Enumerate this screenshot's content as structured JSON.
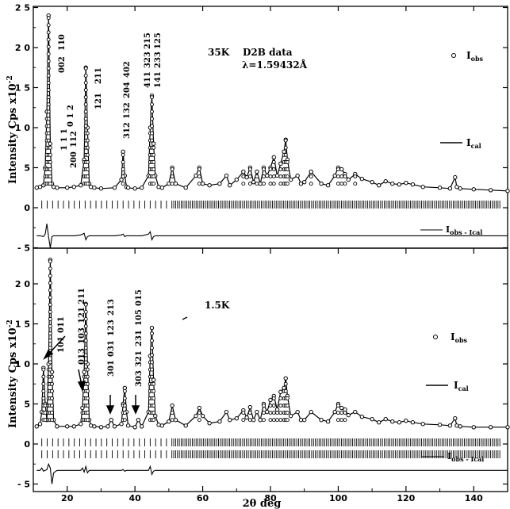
{
  "chart_data": [
    {
      "type": "scatter",
      "panel": "top",
      "annotation_temp": "35K",
      "annotation_source": "D2B data",
      "annotation_lambda": "λ=1.59432Å",
      "ylabel": "Intensity  Cps  x10",
      "ylabel_exp": "-2",
      "xlim": [
        10,
        150
      ],
      "ylim": [
        -5,
        25
      ],
      "yticks": [
        "2 5",
        "2 0",
        "1 5",
        "1 0",
        "5",
        "0",
        "- 5"
      ],
      "legend": {
        "obs": "I",
        "obs_sub": "obs",
        "cal": "I",
        "cal_sub": "cal",
        "diff": "I",
        "diff_sub": "obs - I",
        "diff_sub2": "cal"
      },
      "peak_labels": [
        "1 1 1",
        "200",
        "0 1 2",
        "112",
        "002",
        "110",
        "121",
        "211",
        "312",
        "132",
        "204",
        "402",
        "411",
        "141",
        "323",
        "233",
        "215",
        "125"
      ],
      "x": [
        11,
        12,
        13,
        13.5,
        14,
        14.5,
        15,
        15.5,
        16,
        17,
        20,
        22,
        24,
        25,
        25.5,
        26,
        26.5,
        27,
        28,
        30,
        34,
        36,
        36.5,
        37,
        37.5,
        38,
        40,
        42,
        44,
        44.5,
        45,
        45.5,
        46,
        47,
        48,
        50,
        51,
        52,
        55,
        58,
        59,
        60,
        62,
        65,
        67,
        68,
        70,
        72,
        73,
        74,
        75,
        76,
        77,
        78,
        79,
        80,
        81,
        82,
        83,
        84,
        84.5,
        85,
        86,
        88,
        89,
        90,
        92,
        95,
        97,
        99,
        100,
        101,
        102,
        103,
        105,
        107,
        110,
        112,
        114,
        116,
        118,
        120,
        122,
        125,
        130,
        133,
        134.5,
        135,
        136,
        140,
        145,
        150
      ],
      "obs": [
        2.5,
        2.6,
        2.8,
        5,
        12,
        24,
        8,
        3,
        2.6,
        2.5,
        2.5,
        2.6,
        2.8,
        6,
        17.5,
        10,
        3,
        2.6,
        2.5,
        2.4,
        2.5,
        3.5,
        7,
        4,
        2.6,
        2.5,
        2.4,
        2.5,
        4,
        10,
        14,
        8,
        4,
        2.6,
        2.5,
        3,
        5,
        3,
        2.5,
        4,
        5,
        3,
        2.8,
        3,
        4,
        2.8,
        3.5,
        4.5,
        3.8,
        5,
        3.2,
        4.5,
        3,
        5,
        4,
        5,
        6.3,
        4,
        5.5,
        7,
        8.5,
        6,
        3.5,
        4,
        3,
        3.2,
        4.5,
        3,
        2.8,
        4,
        5,
        4.8,
        4.2,
        3.5,
        4.2,
        3.6,
        3.2,
        2.8,
        3.3,
        3,
        2.9,
        3.1,
        2.9,
        2.6,
        2.5,
        2.4,
        3.8,
        2.6,
        2.4,
        2.3,
        2.2,
        2.1
      ],
      "diff": [
        -3.5,
        -3.5,
        -3.6,
        -3.3,
        -2,
        -3.6,
        -5,
        -3.6,
        -3.5,
        -3.5,
        -3.5,
        -3.5,
        -3.4,
        -3.2,
        -4,
        -3.6,
        -3.5,
        -3.5,
        -3.5,
        -3.5,
        -3.5,
        -3.4,
        -3.3,
        -3.6,
        -3.5,
        -3.5,
        -3.5,
        -3.5,
        -3.3,
        -3,
        -4,
        -3.6,
        -3.5,
        -3.5,
        -3.5,
        -3.5,
        -3.5,
        -3.5,
        -3.5,
        -3.5,
        -3.5,
        -3.5,
        -3.5,
        -3.5,
        -3.5,
        -3.5,
        -3.5,
        -3.5,
        -3.5,
        -3.5,
        -3.5,
        -3.5,
        -3.5,
        -3.5,
        -3.5,
        -3.5,
        -3.5,
        -3.5,
        -3.5,
        -3.5,
        -3.5,
        -3.5,
        -3.5,
        -3.5,
        -3.5,
        -3.5,
        -3.5,
        -3.5,
        -3.5,
        -3.5,
        -3.5,
        -3.5,
        -3.5,
        -3.5,
        -3.5,
        -3.5,
        -3.5,
        -3.5,
        -3.5,
        -3.5,
        -3.5,
        -3.5,
        -3.5,
        -3.5,
        -3.5,
        -3.5,
        -3.5,
        -3.5,
        -3.5,
        -3.5,
        -3.5,
        -3.5
      ]
    },
    {
      "type": "scatter",
      "panel": "bottom",
      "annotation_temp": "1.5K",
      "ylabel": "Intensity  Cps  x10",
      "ylabel_exp": "-2",
      "xlabel": "2θ deg",
      "xlim": [
        10,
        150
      ],
      "ylim": [
        -5,
        25
      ],
      "yticks": [
        "2 0",
        "1 5",
        "1 0",
        "5",
        "0",
        "- 5"
      ],
      "xticks": [
        "20",
        "40",
        "60",
        "80",
        "100",
        "120",
        "140"
      ],
      "legend": {
        "obs": "I",
        "obs_sub": "obs",
        "cal": "I",
        "cal_sub": "cal",
        "diff": "I",
        "diff_sub": "obs - I",
        "diff_sub2": "cal"
      },
      "peak_labels": [
        "101",
        "011",
        "013",
        "103",
        "121",
        "211",
        "301",
        "031",
        "123",
        "213",
        "303",
        "321",
        "231",
        "105",
        "015"
      ],
      "x": [
        11,
        12,
        12.5,
        13,
        13.5,
        14,
        14.5,
        15,
        15.5,
        16,
        17,
        20,
        22,
        24,
        24.5,
        25,
        25.5,
        26,
        26.5,
        27,
        28,
        30,
        32,
        33,
        34,
        36,
        36.5,
        37,
        37.5,
        38,
        40,
        41,
        42,
        44,
        44.5,
        45,
        45.5,
        46,
        47,
        48,
        50,
        51,
        52,
        55,
        58,
        59,
        60,
        62,
        65,
        67,
        68,
        70,
        72,
        73,
        74,
        75,
        76,
        77,
        78,
        79,
        80,
        81,
        82,
        83,
        84,
        84.5,
        85,
        86,
        88,
        89,
        90,
        92,
        95,
        97,
        99,
        100,
        101,
        102,
        103,
        105,
        107,
        110,
        112,
        114,
        116,
        118,
        120,
        122,
        125,
        130,
        133,
        134.5,
        135,
        136,
        140,
        145,
        150
      ],
      "obs": [
        2.2,
        2.5,
        4,
        9.5,
        5,
        3,
        10,
        23,
        9,
        3,
        2.2,
        2.2,
        2.2,
        2.5,
        4.5,
        9,
        17.5,
        10,
        3,
        2.3,
        2.2,
        2.1,
        2.2,
        3,
        2.2,
        2.5,
        5,
        7,
        4,
        2.3,
        2.1,
        3,
        2.2,
        4,
        11,
        14.5,
        8,
        3.5,
        2.4,
        2.3,
        2.8,
        4.8,
        3,
        2.3,
        3.5,
        4.5,
        3.5,
        2.6,
        2.8,
        4,
        3,
        3.2,
        4.2,
        3.3,
        4.6,
        3,
        4,
        3,
        5,
        4,
        5.5,
        6,
        4.3,
        6.5,
        7,
        8.2,
        6,
        3.5,
        4,
        3,
        3,
        4,
        3,
        2.8,
        4,
        5,
        4.5,
        4.3,
        3.6,
        4,
        3.4,
        3.1,
        2.7,
        3.1,
        2.8,
        2.7,
        2.9,
        2.7,
        2.5,
        2.4,
        2.3,
        3.2,
        2.3,
        2.2,
        2.1,
        2.1,
        2.1
      ],
      "diff": [
        -3.3,
        -3.3,
        -3,
        -3.4,
        -3.3,
        -3.2,
        -2.5,
        -3,
        -5,
        -3.6,
        -3.3,
        -3.3,
        -3.3,
        -3.3,
        -3,
        -3.5,
        -2.8,
        -3.6,
        -3.3,
        -3.3,
        -3.3,
        -3.3,
        -3.3,
        -3.3,
        -3.3,
        -3.3,
        -3.2,
        -3.4,
        -3.3,
        -3.3,
        -3.3,
        -3.3,
        -3.3,
        -3.3,
        -2.8,
        -3.8,
        -3.4,
        -3.3,
        -3.3,
        -3.3,
        -3.3,
        -3.3,
        -3.3,
        -3.3,
        -3.3,
        -3.3,
        -3.3,
        -3.3,
        -3.3,
        -3.3,
        -3.3,
        -3.3,
        -3.3,
        -3.3,
        -3.3,
        -3.3,
        -3.3,
        -3.3,
        -3.3,
        -3.3,
        -3.3,
        -3.3,
        -3.3,
        -3.3,
        -3.3,
        -3.3,
        -3.3,
        -3.3,
        -3.3,
        -3.3,
        -3.3,
        -3.3,
        -3.3,
        -3.3,
        -3.3,
        -3.3,
        -3.3,
        -3.3,
        -3.3,
        -3.3,
        -3.3,
        -3.3,
        -3.3,
        -3.3,
        -3.3,
        -3.3,
        -3.3,
        -3.3,
        -3.3,
        -3.3,
        -3.3,
        -3.3,
        -3.3,
        -3.3,
        -3.3,
        -3.3,
        -3.3
      ]
    }
  ]
}
